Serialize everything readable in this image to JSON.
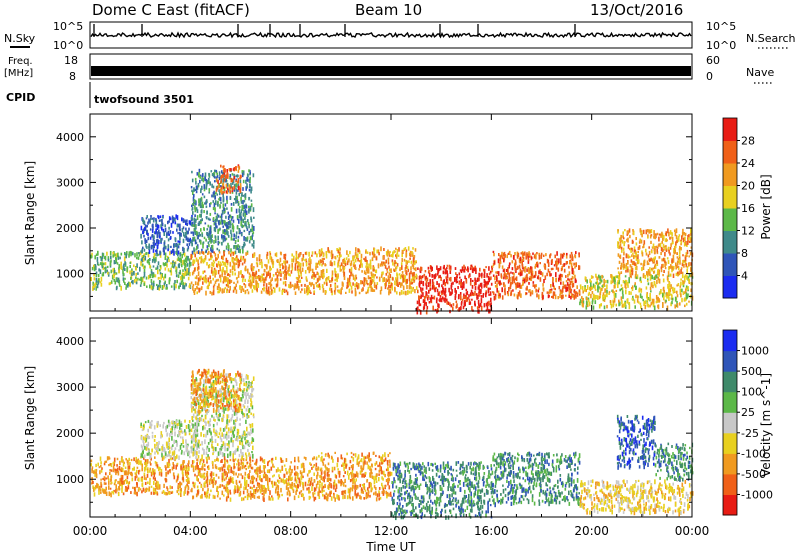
{
  "header": {
    "radar": "Dome C East (fitACF)",
    "beam": "Beam 10",
    "date": "13/Oct/2016"
  },
  "top_panels": {
    "nsky": {
      "label": "N.Sky",
      "ticks": [
        "10^5",
        "10^0"
      ],
      "right_label": "N.Search",
      "right_ticks": [
        "10^5",
        "10^0"
      ]
    },
    "freq": {
      "label_line1": "Freq.",
      "label_line2": "[MHz]",
      "ticks": [
        "18",
        "8"
      ],
      "right_label": "Nave",
      "right_ticks": [
        "60",
        "0"
      ]
    },
    "cpid": {
      "label": "CPID",
      "value": "twofsound 3501"
    }
  },
  "chart_data": [
    {
      "type": "heatmap",
      "name": "power",
      "ylabel": "Slant Range [km]",
      "y_ticks": [
        "1000",
        "2000",
        "3000",
        "4000"
      ],
      "y_tick_values": [
        1000,
        2000,
        3000,
        4000
      ],
      "ylim": [
        180,
        4500
      ],
      "xlim": [
        0,
        24
      ],
      "colorbar": {
        "label": "Power [dB]",
        "ticks": [
          "4",
          "8",
          "12",
          "16",
          "20",
          "24",
          "28"
        ],
        "tick_values": [
          4,
          8,
          12,
          16,
          20,
          24,
          28
        ],
        "range": [
          0,
          32
        ],
        "colors": [
          "#1b2cf0",
          "#2f55b8",
          "#3f8a8a",
          "#5cb848",
          "#e8d020",
          "#f09a20",
          "#f06018",
          "#e81c14"
        ]
      },
      "regions": [
        {
          "t0": 0.0,
          "t1": 4.0,
          "r0": 700,
          "r1": 1500,
          "level": 3
        },
        {
          "t0": 2.0,
          "t1": 4.2,
          "r0": 1500,
          "r1": 2300,
          "level": 1
        },
        {
          "t0": 4.0,
          "t1": 6.5,
          "r0": 1500,
          "r1": 3300,
          "level": 2
        },
        {
          "t0": 5.0,
          "t1": 6.0,
          "r0": 2800,
          "r1": 3400,
          "level": 6
        },
        {
          "t0": 4.0,
          "t1": 9.0,
          "r0": 600,
          "r1": 1500,
          "level": 5
        },
        {
          "t0": 9.0,
          "t1": 13.0,
          "r0": 600,
          "r1": 1600,
          "level": 5
        },
        {
          "t0": 13.0,
          "t1": 16.0,
          "r0": 200,
          "r1": 1200,
          "level": 7
        },
        {
          "t0": 16.0,
          "t1": 19.5,
          "r0": 500,
          "r1": 1500,
          "level": 6
        },
        {
          "t0": 19.5,
          "t1": 24.0,
          "r0": 300,
          "r1": 1000,
          "level": 4
        },
        {
          "t0": 21.0,
          "t1": 24.0,
          "r0": 1000,
          "r1": 2000,
          "level": 5
        }
      ]
    },
    {
      "type": "heatmap",
      "name": "velocity",
      "ylabel": "Slant Range [km]",
      "y_ticks": [
        "1000",
        "2000",
        "3000",
        "4000"
      ],
      "y_tick_values": [
        1000,
        2000,
        3000,
        4000
      ],
      "ylim": [
        180,
        4500
      ],
      "xlim": [
        0,
        24
      ],
      "x_ticks": [
        "00:00",
        "04:00",
        "08:00",
        "12:00",
        "16:00",
        "20:00",
        "00:00"
      ],
      "x_tick_values": [
        0,
        4,
        8,
        12,
        16,
        20,
        24
      ],
      "xlabel": "Time UT",
      "colorbar": {
        "label": "Velocity [m s^-1]",
        "ticks": [
          "1000",
          "500",
          "100",
          "25",
          "-25",
          "-100",
          "-500",
          "-1000"
        ],
        "range": [
          0,
          9
        ],
        "colors": [
          "#e81c14",
          "#f06018",
          "#f09a20",
          "#e8d020",
          "#c8c8c8",
          "#5cb848",
          "#3f8a6a",
          "#2f55b8",
          "#1b2cf0"
        ]
      },
      "regions": [
        {
          "t0": 0.0,
          "t1": 4.0,
          "r0": 700,
          "r1": 1500,
          "level": 2
        },
        {
          "t0": 2.0,
          "t1": 4.2,
          "r0": 1500,
          "r1": 2300,
          "level": 4
        },
        {
          "t0": 4.0,
          "t1": 6.5,
          "r0": 1500,
          "r1": 3300,
          "level": 4
        },
        {
          "t0": 4.0,
          "t1": 6.0,
          "r0": 2500,
          "r1": 3400,
          "level": 2
        },
        {
          "t0": 4.0,
          "t1": 9.0,
          "r0": 600,
          "r1": 1500,
          "level": 2
        },
        {
          "t0": 9.0,
          "t1": 12.0,
          "r0": 600,
          "r1": 1600,
          "level": 2
        },
        {
          "t0": 12.0,
          "t1": 16.0,
          "r0": 200,
          "r1": 1400,
          "level": 6
        },
        {
          "t0": 16.0,
          "t1": 19.5,
          "r0": 500,
          "r1": 1600,
          "level": 6
        },
        {
          "t0": 19.5,
          "t1": 24.0,
          "r0": 300,
          "r1": 1000,
          "level": 3
        },
        {
          "t0": 21.0,
          "t1": 22.5,
          "r0": 1300,
          "r1": 2400,
          "level": 7
        },
        {
          "t0": 22.5,
          "t1": 24.0,
          "r0": 1000,
          "r1": 1800,
          "level": 6
        }
      ]
    }
  ]
}
